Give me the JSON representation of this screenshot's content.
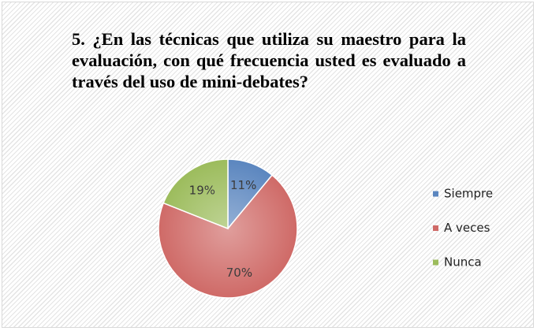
{
  "chart_data": {
    "type": "pie",
    "title": "5. ¿En las técnicas que utiliza su maestro para la evaluación, con qué frecuencia usted es evaluado a través del uso de mini-debates?",
    "categories": [
      "Siempre",
      "A veces",
      "Nunca"
    ],
    "values": [
      11,
      70,
      19
    ],
    "value_labels": [
      "11%",
      "70%",
      "19%"
    ],
    "colors": [
      "#5b86bf",
      "#cf6a67",
      "#9cbc5c"
    ],
    "legend": "right"
  }
}
